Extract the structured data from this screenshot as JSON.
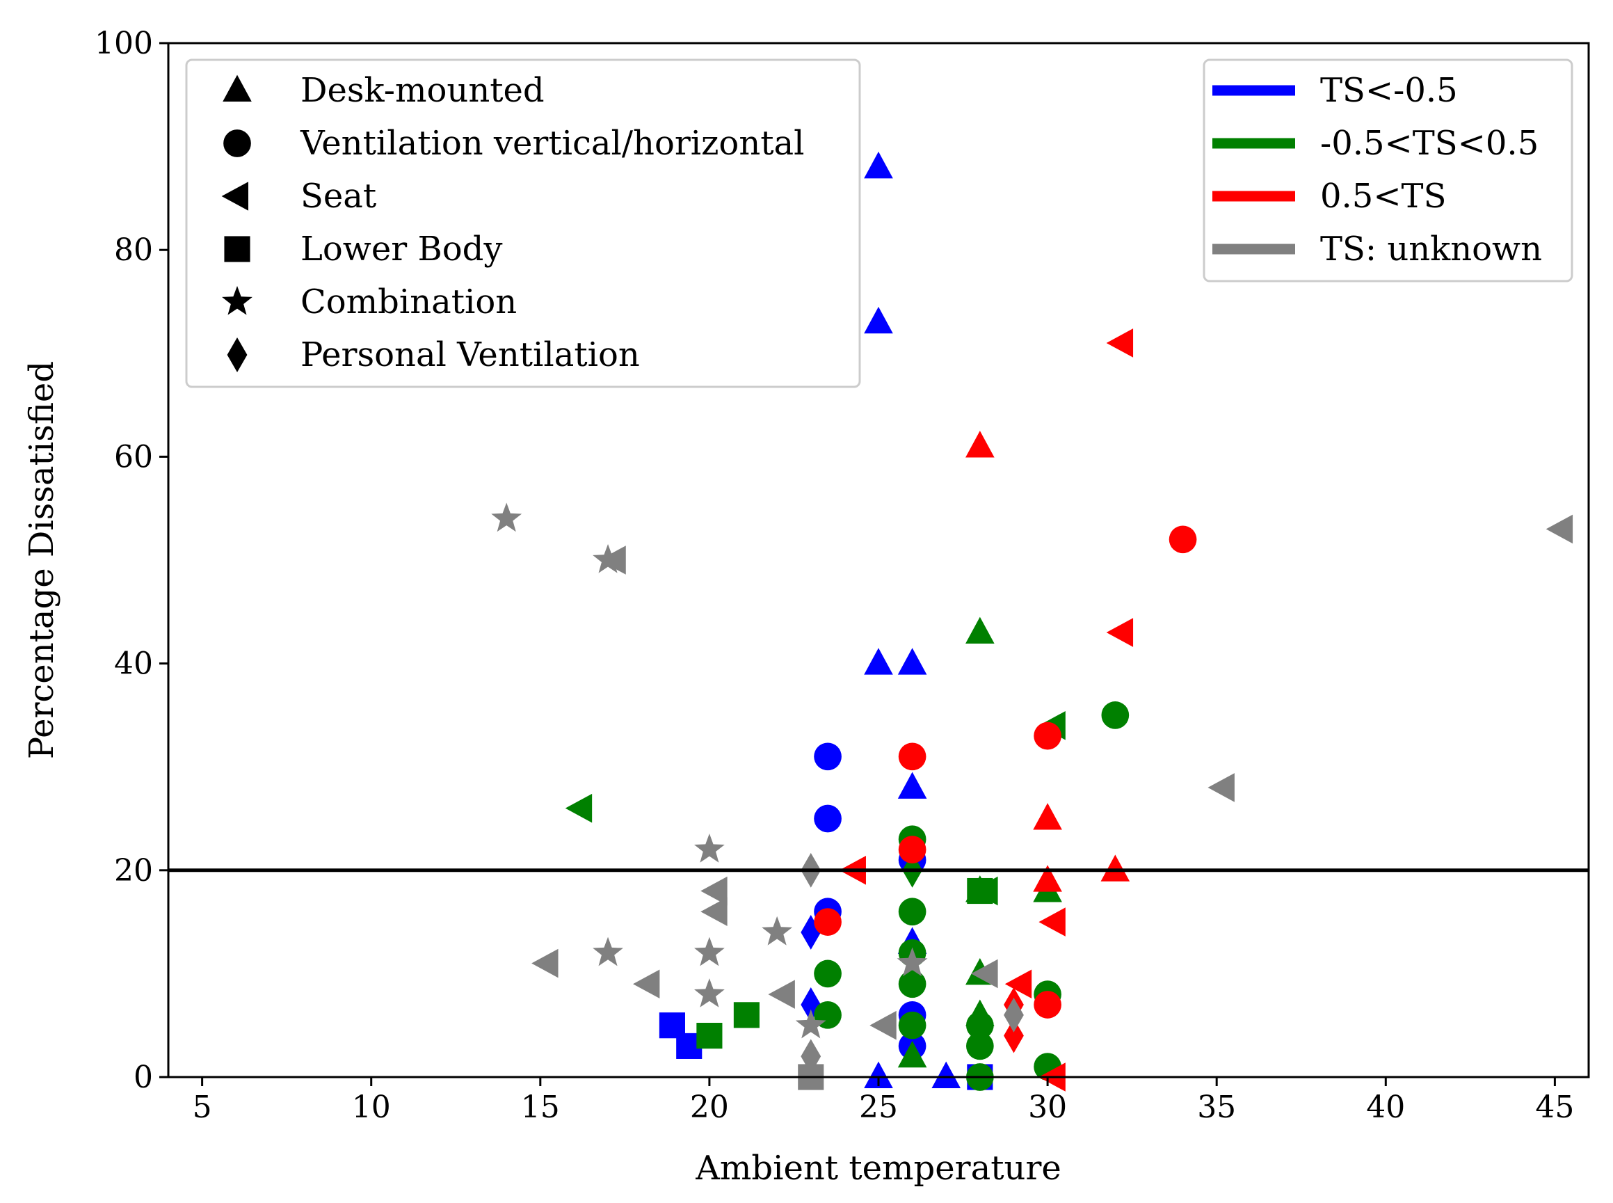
{
  "chart_data": {
    "type": "scatter",
    "title": "",
    "xlabel": "Ambient temperature",
    "ylabel": "Percentage Dissatisfied",
    "xlim": [
      4,
      46
    ],
    "ylim": [
      0,
      100
    ],
    "x_ticks": [
      5,
      10,
      15,
      20,
      25,
      30,
      35,
      40,
      45
    ],
    "y_ticks": [
      0,
      20,
      40,
      60,
      80,
      100
    ],
    "grid": false,
    "reference_line": {
      "y": 20,
      "color": "#000000"
    },
    "colors": {
      "TS<-0.5": "#0000ff",
      "-0.5<TS<0.5": "#008000",
      "0.5<TS": "#ff0000",
      "TS: unknown": "#808080"
    },
    "marker_legend": {
      "placement": "upper-left",
      "items": [
        {
          "marker": "triangle-up",
          "label": "Desk-mounted"
        },
        {
          "marker": "circle",
          "label": "Ventilation vertical/horizontal"
        },
        {
          "marker": "triangle-left",
          "label": "Seat"
        },
        {
          "marker": "square",
          "label": "Lower Body"
        },
        {
          "marker": "star",
          "label": "Combination"
        },
        {
          "marker": "diamond",
          "label": "Personal Ventilation"
        }
      ]
    },
    "color_legend": {
      "placement": "upper-right",
      "items": [
        {
          "color": "#0000ff",
          "label": "TS<-0.5"
        },
        {
          "color": "#008000",
          "label": "-0.5<TS<0.5"
        },
        {
          "color": "#ff0000",
          "label": "0.5<TS"
        },
        {
          "color": "#808080",
          "label": "TS: unknown"
        }
      ]
    },
    "points": [
      {
        "x": 25,
        "y": 88,
        "marker": "triangle-up",
        "category": "TS<-0.5"
      },
      {
        "x": 25,
        "y": 73,
        "marker": "triangle-up",
        "category": "TS<-0.5"
      },
      {
        "x": 25,
        "y": 40,
        "marker": "triangle-up",
        "category": "TS<-0.5"
      },
      {
        "x": 26,
        "y": 40,
        "marker": "triangle-up",
        "category": "TS<-0.5"
      },
      {
        "x": 26,
        "y": 28,
        "marker": "triangle-up",
        "category": "TS<-0.5"
      },
      {
        "x": 26,
        "y": 13,
        "marker": "triangle-up",
        "category": "TS<-0.5"
      },
      {
        "x": 25,
        "y": 0,
        "marker": "triangle-up",
        "category": "TS<-0.5"
      },
      {
        "x": 27,
        "y": 0,
        "marker": "triangle-up",
        "category": "TS<-0.5"
      },
      {
        "x": 23.5,
        "y": 31,
        "marker": "circle",
        "category": "TS<-0.5"
      },
      {
        "x": 23.5,
        "y": 25,
        "marker": "circle",
        "category": "TS<-0.5"
      },
      {
        "x": 23.5,
        "y": 16,
        "marker": "circle",
        "category": "TS<-0.5"
      },
      {
        "x": 26,
        "y": 21,
        "marker": "circle",
        "category": "TS<-0.5"
      },
      {
        "x": 26,
        "y": 6,
        "marker": "circle",
        "category": "TS<-0.5"
      },
      {
        "x": 26,
        "y": 3,
        "marker": "circle",
        "category": "TS<-0.5"
      },
      {
        "x": 18.9,
        "y": 5,
        "marker": "square",
        "category": "TS<-0.5"
      },
      {
        "x": 19.4,
        "y": 3,
        "marker": "square",
        "category": "TS<-0.5"
      },
      {
        "x": 28,
        "y": 0,
        "marker": "square",
        "category": "TS<-0.5"
      },
      {
        "x": 23,
        "y": 14,
        "marker": "diamond",
        "category": "TS<-0.5"
      },
      {
        "x": 23,
        "y": 7,
        "marker": "diamond",
        "category": "TS<-0.5"
      },
      {
        "x": 28,
        "y": 43,
        "marker": "triangle-up",
        "category": "-0.5<TS<0.5"
      },
      {
        "x": 28,
        "y": 18,
        "marker": "triangle-up",
        "category": "-0.5<TS<0.5"
      },
      {
        "x": 28,
        "y": 10,
        "marker": "triangle-up",
        "category": "-0.5<TS<0.5"
      },
      {
        "x": 28,
        "y": 6,
        "marker": "triangle-up",
        "category": "-0.5<TS<0.5"
      },
      {
        "x": 30,
        "y": 18,
        "marker": "triangle-up",
        "category": "-0.5<TS<0.5"
      },
      {
        "x": 26,
        "y": 2,
        "marker": "triangle-up",
        "category": "-0.5<TS<0.5"
      },
      {
        "x": 32,
        "y": 35,
        "marker": "circle",
        "category": "-0.5<TS<0.5"
      },
      {
        "x": 26,
        "y": 23,
        "marker": "circle",
        "category": "-0.5<TS<0.5"
      },
      {
        "x": 26,
        "y": 16,
        "marker": "circle",
        "category": "-0.5<TS<0.5"
      },
      {
        "x": 26,
        "y": 12,
        "marker": "circle",
        "category": "-0.5<TS<0.5"
      },
      {
        "x": 26,
        "y": 9,
        "marker": "circle",
        "category": "-0.5<TS<0.5"
      },
      {
        "x": 26,
        "y": 5,
        "marker": "circle",
        "category": "-0.5<TS<0.5"
      },
      {
        "x": 23.5,
        "y": 10,
        "marker": "circle",
        "category": "-0.5<TS<0.5"
      },
      {
        "x": 23.5,
        "y": 6,
        "marker": "circle",
        "category": "-0.5<TS<0.5"
      },
      {
        "x": 28,
        "y": 5,
        "marker": "circle",
        "category": "-0.5<TS<0.5"
      },
      {
        "x": 28,
        "y": 3,
        "marker": "circle",
        "category": "-0.5<TS<0.5"
      },
      {
        "x": 28,
        "y": 0,
        "marker": "circle",
        "category": "-0.5<TS<0.5"
      },
      {
        "x": 30,
        "y": 8,
        "marker": "circle",
        "category": "-0.5<TS<0.5"
      },
      {
        "x": 30,
        "y": 1,
        "marker": "circle",
        "category": "-0.5<TS<0.5"
      },
      {
        "x": 16.2,
        "y": 26,
        "marker": "triangle-left",
        "category": "-0.5<TS<0.5"
      },
      {
        "x": 30.2,
        "y": 34,
        "marker": "triangle-left",
        "category": "-0.5<TS<0.5"
      },
      {
        "x": 28.2,
        "y": 18,
        "marker": "triangle-left",
        "category": "-0.5<TS<0.5"
      },
      {
        "x": 20,
        "y": 4,
        "marker": "square",
        "category": "-0.5<TS<0.5"
      },
      {
        "x": 21.1,
        "y": 6,
        "marker": "square",
        "category": "-0.5<TS<0.5"
      },
      {
        "x": 28,
        "y": 18,
        "marker": "square",
        "category": "-0.5<TS<0.5"
      },
      {
        "x": 26,
        "y": 20,
        "marker": "diamond",
        "category": "-0.5<TS<0.5"
      },
      {
        "x": 28,
        "y": 61,
        "marker": "triangle-up",
        "category": "0.5<TS"
      },
      {
        "x": 30,
        "y": 25,
        "marker": "triangle-up",
        "category": "0.5<TS"
      },
      {
        "x": 32,
        "y": 20,
        "marker": "triangle-up",
        "category": "0.5<TS"
      },
      {
        "x": 30,
        "y": 19,
        "marker": "triangle-up",
        "category": "0.5<TS"
      },
      {
        "x": 34,
        "y": 52,
        "marker": "circle",
        "category": "0.5<TS"
      },
      {
        "x": 30,
        "y": 33,
        "marker": "circle",
        "category": "0.5<TS"
      },
      {
        "x": 26,
        "y": 31,
        "marker": "circle",
        "category": "0.5<TS"
      },
      {
        "x": 23.5,
        "y": 15,
        "marker": "circle",
        "category": "0.5<TS"
      },
      {
        "x": 26,
        "y": 22,
        "marker": "circle",
        "category": "0.5<TS"
      },
      {
        "x": 30,
        "y": 7,
        "marker": "circle",
        "category": "0.5<TS"
      },
      {
        "x": 32.2,
        "y": 71,
        "marker": "triangle-left",
        "category": "0.5<TS"
      },
      {
        "x": 32.2,
        "y": 43,
        "marker": "triangle-left",
        "category": "0.5<TS"
      },
      {
        "x": 24.3,
        "y": 20,
        "marker": "triangle-left",
        "category": "0.5<TS"
      },
      {
        "x": 30.2,
        "y": 15,
        "marker": "triangle-left",
        "category": "0.5<TS"
      },
      {
        "x": 29.2,
        "y": 9,
        "marker": "triangle-left",
        "category": "0.5<TS"
      },
      {
        "x": 30.2,
        "y": 0,
        "marker": "triangle-left",
        "category": "0.5<TS"
      },
      {
        "x": 29,
        "y": 7,
        "marker": "diamond",
        "category": "0.5<TS"
      },
      {
        "x": 29,
        "y": 4,
        "marker": "diamond",
        "category": "0.5<TS"
      },
      {
        "x": 14,
        "y": 54,
        "marker": "star",
        "category": "TS: unknown"
      },
      {
        "x": 17,
        "y": 50,
        "marker": "star",
        "category": "TS: unknown"
      },
      {
        "x": 20,
        "y": 22,
        "marker": "star",
        "category": "TS: unknown"
      },
      {
        "x": 17,
        "y": 12,
        "marker": "star",
        "category": "TS: unknown"
      },
      {
        "x": 20,
        "y": 12,
        "marker": "star",
        "category": "TS: unknown"
      },
      {
        "x": 22,
        "y": 14,
        "marker": "star",
        "category": "TS: unknown"
      },
      {
        "x": 20,
        "y": 8,
        "marker": "star",
        "category": "TS: unknown"
      },
      {
        "x": 23,
        "y": 5,
        "marker": "star",
        "category": "TS: unknown"
      },
      {
        "x": 26,
        "y": 11,
        "marker": "star",
        "category": "TS: unknown"
      },
      {
        "x": 17.2,
        "y": 50,
        "marker": "triangle-left",
        "category": "TS: unknown"
      },
      {
        "x": 45.2,
        "y": 53,
        "marker": "triangle-left",
        "category": "TS: unknown"
      },
      {
        "x": 35.2,
        "y": 28,
        "marker": "triangle-left",
        "category": "TS: unknown"
      },
      {
        "x": 20.2,
        "y": 18,
        "marker": "triangle-left",
        "category": "TS: unknown"
      },
      {
        "x": 20.2,
        "y": 16,
        "marker": "triangle-left",
        "category": "TS: unknown"
      },
      {
        "x": 15.2,
        "y": 11,
        "marker": "triangle-left",
        "category": "TS: unknown"
      },
      {
        "x": 18.2,
        "y": 9,
        "marker": "triangle-left",
        "category": "TS: unknown"
      },
      {
        "x": 22.2,
        "y": 8,
        "marker": "triangle-left",
        "category": "TS: unknown"
      },
      {
        "x": 25.2,
        "y": 5,
        "marker": "triangle-left",
        "category": "TS: unknown"
      },
      {
        "x": 28.2,
        "y": 10,
        "marker": "triangle-left",
        "category": "TS: unknown"
      },
      {
        "x": 23,
        "y": 20,
        "marker": "diamond",
        "category": "TS: unknown"
      },
      {
        "x": 23,
        "y": 2,
        "marker": "diamond",
        "category": "TS: unknown"
      },
      {
        "x": 23,
        "y": 0,
        "marker": "square",
        "category": "TS: unknown"
      },
      {
        "x": 29,
        "y": 6,
        "marker": "diamond",
        "category": "TS: unknown"
      }
    ]
  }
}
